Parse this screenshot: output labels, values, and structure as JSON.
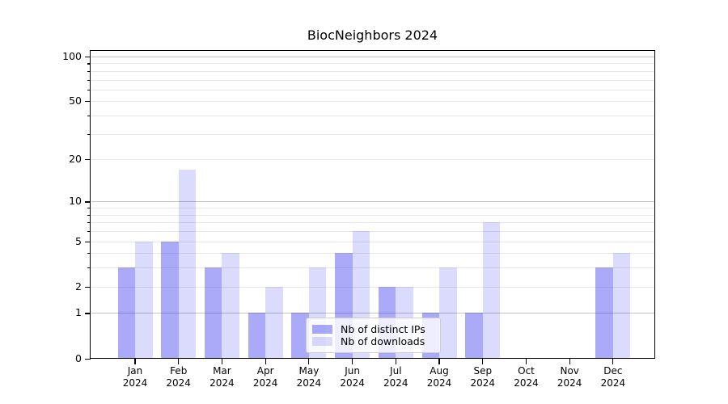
{
  "title": "BiocNeighbors 2024",
  "colors": {
    "ips_bar": "rgba(34,34,240,0.385)",
    "downloads_bar": "rgba(34,34,240,0.163)",
    "ips_bar_hex": "#aaaafa",
    "downloads_bar_hex": "#dbdbfa",
    "grid_major": "#c3c3c3",
    "grid_minor": "#e8e8e8",
    "axis": "#000000",
    "legend_border": "#cccccc"
  },
  "legend": {
    "items": [
      {
        "label": "Nb of distinct IPs"
      },
      {
        "label": "Nb of downloads"
      }
    ]
  },
  "chart_data": {
    "type": "bar",
    "title": "BiocNeighbors 2024",
    "categories": [
      "Jan",
      "Feb",
      "Mar",
      "Apr",
      "May",
      "Jun",
      "Jul",
      "Aug",
      "Sep",
      "Oct",
      "Nov",
      "Dec"
    ],
    "year_label": "2024",
    "series": [
      {
        "name": "Nb of distinct IPs",
        "values": [
          3,
          5,
          3,
          1,
          1,
          4,
          2,
          1,
          1,
          0,
          0,
          3
        ]
      },
      {
        "name": "Nb of downloads",
        "values": [
          5,
          17,
          4,
          2,
          3,
          6,
          2,
          3,
          7,
          0,
          0,
          4
        ]
      }
    ],
    "xlabel": "",
    "ylabel": "",
    "yscale": "log10(value+1)",
    "ylim": [
      0,
      110
    ],
    "ytick_values": [
      0,
      1,
      2,
      5,
      10,
      20,
      50,
      100
    ],
    "ytick_labels": [
      "0",
      "1",
      "2",
      "5",
      "10",
      "20",
      "50",
      "100"
    ],
    "grid_major_values": [
      1,
      10,
      100
    ],
    "grid_minor_values": [
      2,
      3,
      4,
      5,
      6,
      7,
      8,
      9,
      20,
      30,
      40,
      50,
      60,
      70,
      80,
      90
    ],
    "grid": true,
    "legend_position": "lower-center"
  }
}
